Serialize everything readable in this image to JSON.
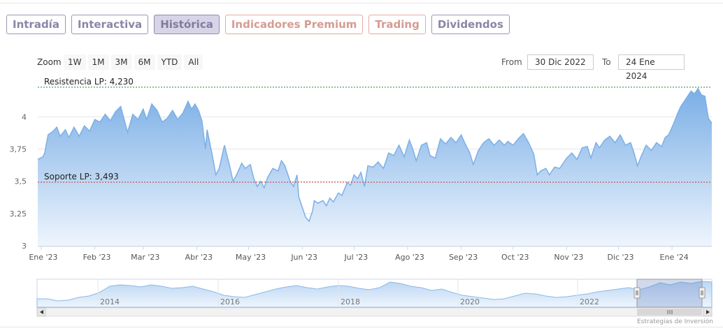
{
  "tabs": [
    {
      "label": "Intradía",
      "style": "normal"
    },
    {
      "label": "Interactiva",
      "style": "normal"
    },
    {
      "label": "Histórica",
      "style": "active"
    },
    {
      "label": "Indicadores Premium",
      "style": "premium"
    },
    {
      "label": "Trading",
      "style": "premium"
    },
    {
      "label": "Dividendos",
      "style": "normal"
    }
  ],
  "range_selector": {
    "zoom_label": "Zoom",
    "buttons": [
      "1W",
      "1M",
      "3M",
      "6M",
      "YTD",
      "All"
    ],
    "from_label": "From",
    "from_value": "30 Dic 2022",
    "to_label": "To",
    "to_value": "24 Ene 2024"
  },
  "credit": "Estrategias de Inversión",
  "colors": {
    "line": "#7cb0e6",
    "fill_top": "#7aaee6",
    "fill_bottom": "#eef5fd",
    "resistance": "#2e7d32",
    "support": "#c0392b",
    "tab_normal": "#8a86a6",
    "tab_premium": "#d69b92"
  },
  "chart_data": {
    "type": "area",
    "ylim": [
      3.0,
      4.3
    ],
    "y_ticks": [
      {
        "value": 3.0,
        "label": "3"
      },
      {
        "value": 3.25,
        "label": "3,25"
      },
      {
        "value": 3.5,
        "label": "3,5"
      },
      {
        "value": 3.75,
        "label": "3,75"
      },
      {
        "value": 4.0,
        "label": "4"
      }
    ],
    "x_start": "2022-12-30",
    "x_end": "2024-01-24",
    "x_ticks": [
      {
        "date": "2023-01-01",
        "label": "Ene '23"
      },
      {
        "date": "2023-02-01",
        "label": "Feb '23"
      },
      {
        "date": "2023-03-01",
        "label": "Mar '23"
      },
      {
        "date": "2023-04-01",
        "label": "Abr '23"
      },
      {
        "date": "2023-05-01",
        "label": "May '23"
      },
      {
        "date": "2023-06-01",
        "label": "Jun '23"
      },
      {
        "date": "2023-07-01",
        "label": "Jul '23"
      },
      {
        "date": "2023-08-01",
        "label": "Ago '23"
      },
      {
        "date": "2023-09-01",
        "label": "Sep '23"
      },
      {
        "date": "2023-10-01",
        "label": "Oct '23"
      },
      {
        "date": "2023-11-01",
        "label": "Nov '23"
      },
      {
        "date": "2023-12-01",
        "label": "Dic '23"
      },
      {
        "date": "2024-01-01",
        "label": "Ene '24"
      }
    ],
    "plot_lines": [
      {
        "value": 4.23,
        "label": "Resistencia LP: 4,230",
        "kind": "resistance"
      },
      {
        "value": 3.493,
        "label": "Soporte LP: 3,493",
        "kind": "support"
      }
    ],
    "series": [
      {
        "values": [
          [
            "2022-12-30",
            3.67
          ],
          [
            "2023-01-02",
            3.69
          ],
          [
            "2023-01-03",
            3.72
          ],
          [
            "2023-01-05",
            3.86
          ],
          [
            "2023-01-08",
            3.89
          ],
          [
            "2023-01-10",
            3.92
          ],
          [
            "2023-01-12",
            3.85
          ],
          [
            "2023-01-15",
            3.9
          ],
          [
            "2023-01-17",
            3.84
          ],
          [
            "2023-01-20",
            3.92
          ],
          [
            "2023-01-23",
            3.85
          ],
          [
            "2023-01-26",
            3.93
          ],
          [
            "2023-01-29",
            3.89
          ],
          [
            "2023-02-01",
            3.98
          ],
          [
            "2023-02-04",
            3.96
          ],
          [
            "2023-02-07",
            4.02
          ],
          [
            "2023-02-10",
            3.97
          ],
          [
            "2023-02-13",
            4.04
          ],
          [
            "2023-02-16",
            4.08
          ],
          [
            "2023-02-18",
            3.98
          ],
          [
            "2023-02-20",
            3.88
          ],
          [
            "2023-02-23",
            4.02
          ],
          [
            "2023-02-26",
            3.98
          ],
          [
            "2023-03-01",
            4.06
          ],
          [
            "2023-03-03",
            3.98
          ],
          [
            "2023-03-06",
            4.1
          ],
          [
            "2023-03-09",
            4.05
          ],
          [
            "2023-03-12",
            3.96
          ],
          [
            "2023-03-15",
            3.99
          ],
          [
            "2023-03-18",
            4.05
          ],
          [
            "2023-03-21",
            3.98
          ],
          [
            "2023-03-24",
            4.03
          ],
          [
            "2023-03-27",
            4.12
          ],
          [
            "2023-03-29",
            4.06
          ],
          [
            "2023-03-31",
            4.1
          ],
          [
            "2023-04-02",
            4.05
          ],
          [
            "2023-04-04",
            3.97
          ],
          [
            "2023-04-06",
            3.75
          ],
          [
            "2023-04-07",
            3.9
          ],
          [
            "2023-04-10",
            3.7
          ],
          [
            "2023-04-12",
            3.55
          ],
          [
            "2023-04-14",
            3.6
          ],
          [
            "2023-04-17",
            3.78
          ],
          [
            "2023-04-20",
            3.62
          ],
          [
            "2023-04-22",
            3.5
          ],
          [
            "2023-04-24",
            3.55
          ],
          [
            "2023-04-27",
            3.64
          ],
          [
            "2023-04-29",
            3.6
          ],
          [
            "2023-05-02",
            3.63
          ],
          [
            "2023-05-04",
            3.52
          ],
          [
            "2023-05-06",
            3.46
          ],
          [
            "2023-05-08",
            3.5
          ],
          [
            "2023-05-10",
            3.45
          ],
          [
            "2023-05-12",
            3.53
          ],
          [
            "2023-05-15",
            3.6
          ],
          [
            "2023-05-18",
            3.58
          ],
          [
            "2023-05-20",
            3.66
          ],
          [
            "2023-05-22",
            3.62
          ],
          [
            "2023-05-25",
            3.5
          ],
          [
            "2023-05-27",
            3.46
          ],
          [
            "2023-05-29",
            3.55
          ],
          [
            "2023-05-30",
            3.38
          ],
          [
            "2023-06-01",
            3.3
          ],
          [
            "2023-06-03",
            3.22
          ],
          [
            "2023-06-05",
            3.19
          ],
          [
            "2023-06-07",
            3.27
          ],
          [
            "2023-06-08",
            3.35
          ],
          [
            "2023-06-10",
            3.33
          ],
          [
            "2023-06-13",
            3.35
          ],
          [
            "2023-06-15",
            3.31
          ],
          [
            "2023-06-17",
            3.37
          ],
          [
            "2023-06-19",
            3.34
          ],
          [
            "2023-06-22",
            3.41
          ],
          [
            "2023-06-24",
            3.39
          ],
          [
            "2023-06-27",
            3.49
          ],
          [
            "2023-06-29",
            3.47
          ],
          [
            "2023-07-01",
            3.55
          ],
          [
            "2023-07-03",
            3.52
          ],
          [
            "2023-07-05",
            3.57
          ],
          [
            "2023-07-07",
            3.46
          ],
          [
            "2023-07-09",
            3.62
          ],
          [
            "2023-07-12",
            3.61
          ],
          [
            "2023-07-15",
            3.65
          ],
          [
            "2023-07-18",
            3.6
          ],
          [
            "2023-07-21",
            3.72
          ],
          [
            "2023-07-24",
            3.7
          ],
          [
            "2023-07-27",
            3.78
          ],
          [
            "2023-07-30",
            3.69
          ],
          [
            "2023-08-02",
            3.82
          ],
          [
            "2023-08-04",
            3.75
          ],
          [
            "2023-08-06",
            3.66
          ],
          [
            "2023-08-09",
            3.78
          ],
          [
            "2023-08-12",
            3.8
          ],
          [
            "2023-08-14",
            3.7
          ],
          [
            "2023-08-17",
            3.68
          ],
          [
            "2023-08-20",
            3.83
          ],
          [
            "2023-08-23",
            3.79
          ],
          [
            "2023-08-26",
            3.84
          ],
          [
            "2023-08-29",
            3.8
          ],
          [
            "2023-09-01",
            3.86
          ],
          [
            "2023-09-03",
            3.8
          ],
          [
            "2023-09-06",
            3.72
          ],
          [
            "2023-09-08",
            3.63
          ],
          [
            "2023-09-11",
            3.74
          ],
          [
            "2023-09-14",
            3.8
          ],
          [
            "2023-09-17",
            3.83
          ],
          [
            "2023-09-20",
            3.78
          ],
          [
            "2023-09-23",
            3.82
          ],
          [
            "2023-09-26",
            3.78
          ],
          [
            "2023-09-28",
            3.81
          ],
          [
            "2023-10-01",
            3.78
          ],
          [
            "2023-10-04",
            3.83
          ],
          [
            "2023-10-07",
            3.87
          ],
          [
            "2023-10-10",
            3.8
          ],
          [
            "2023-10-13",
            3.71
          ],
          [
            "2023-10-15",
            3.55
          ],
          [
            "2023-10-17",
            3.58
          ],
          [
            "2023-10-20",
            3.6
          ],
          [
            "2023-10-22",
            3.55
          ],
          [
            "2023-10-25",
            3.61
          ],
          [
            "2023-10-28",
            3.6
          ],
          [
            "2023-11-01",
            3.68
          ],
          [
            "2023-11-04",
            3.72
          ],
          [
            "2023-11-07",
            3.67
          ],
          [
            "2023-11-10",
            3.76
          ],
          [
            "2023-11-13",
            3.77
          ],
          [
            "2023-11-15",
            3.68
          ],
          [
            "2023-11-18",
            3.8
          ],
          [
            "2023-11-20",
            3.76
          ],
          [
            "2023-11-23",
            3.82
          ],
          [
            "2023-11-26",
            3.85
          ],
          [
            "2023-11-29",
            3.8
          ],
          [
            "2023-12-02",
            3.86
          ],
          [
            "2023-12-05",
            3.78
          ],
          [
            "2023-12-08",
            3.8
          ],
          [
            "2023-12-10",
            3.72
          ],
          [
            "2023-12-12",
            3.62
          ],
          [
            "2023-12-14",
            3.69
          ],
          [
            "2023-12-17",
            3.78
          ],
          [
            "2023-12-20",
            3.74
          ],
          [
            "2023-12-23",
            3.8
          ],
          [
            "2023-12-26",
            3.77
          ],
          [
            "2023-12-28",
            3.84
          ],
          [
            "2023-12-30",
            3.86
          ],
          [
            "2024-01-02",
            3.95
          ],
          [
            "2024-01-04",
            4.02
          ],
          [
            "2024-01-06",
            4.08
          ],
          [
            "2024-01-08",
            4.12
          ],
          [
            "2024-01-10",
            4.16
          ],
          [
            "2024-01-12",
            4.2
          ],
          [
            "2024-01-14",
            4.18
          ],
          [
            "2024-01-16",
            4.22
          ],
          [
            "2024-01-18",
            4.17
          ],
          [
            "2024-01-20",
            4.16
          ],
          [
            "2024-01-22",
            3.99
          ],
          [
            "2024-01-24",
            3.95
          ]
        ]
      }
    ],
    "navigator": {
      "x_ticks": [
        "2014",
        "2016",
        "2018",
        "2020",
        "2022"
      ]
    }
  }
}
